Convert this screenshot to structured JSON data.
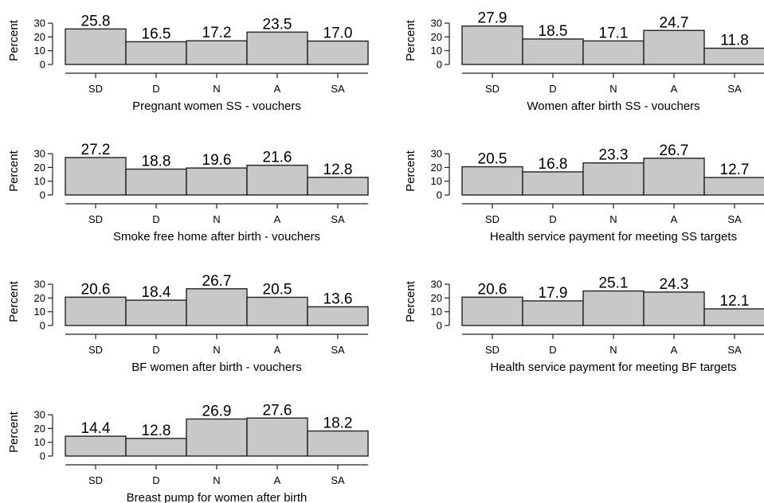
{
  "chart_data": [
    {
      "type": "bar",
      "title": "Pregnant women SS - vouchers",
      "ylabel": "Percent",
      "categories": [
        "SD",
        "D",
        "N",
        "A",
        "SA"
      ],
      "values": [
        25.8,
        16.5,
        17.2,
        23.5,
        17.0
      ],
      "value_labels": [
        "25.8",
        "16.5",
        "17.2",
        "23.5",
        "17.0"
      ],
      "yticks": [
        "0",
        "10",
        "20",
        "30"
      ],
      "ylim": [
        0,
        30
      ]
    },
    {
      "type": "bar",
      "title": "Women after birth SS - vouchers",
      "ylabel": "Percent",
      "categories": [
        "SD",
        "D",
        "N",
        "A",
        "SA"
      ],
      "values": [
        27.9,
        18.5,
        17.1,
        24.7,
        11.8
      ],
      "value_labels": [
        "27.9",
        "18.5",
        "17.1",
        "24.7",
        "11.8"
      ],
      "yticks": [
        "0",
        "10",
        "20",
        "30"
      ],
      "ylim": [
        0,
        30
      ]
    },
    {
      "type": "bar",
      "title": "Smoke free home after birth - vouchers",
      "ylabel": "Percent",
      "categories": [
        "SD",
        "D",
        "N",
        "A",
        "SA"
      ],
      "values": [
        27.2,
        18.8,
        19.6,
        21.6,
        12.8
      ],
      "value_labels": [
        "27.2",
        "18.8",
        "19.6",
        "21.6",
        "12.8"
      ],
      "yticks": [
        "0",
        "10",
        "20",
        "30"
      ],
      "ylim": [
        0,
        30
      ]
    },
    {
      "type": "bar",
      "title": "Health service payment for meeting SS targets",
      "ylabel": "Percent",
      "categories": [
        "SD",
        "D",
        "N",
        "A",
        "SA"
      ],
      "values": [
        20.5,
        16.8,
        23.3,
        26.7,
        12.7
      ],
      "value_labels": [
        "20.5",
        "16.8",
        "23.3",
        "26.7",
        "12.7"
      ],
      "yticks": [
        "0",
        "10",
        "20",
        "30"
      ],
      "ylim": [
        0,
        30
      ]
    },
    {
      "type": "bar",
      "title": "BF women after birth - vouchers",
      "ylabel": "Percent",
      "categories": [
        "SD",
        "D",
        "N",
        "A",
        "SA"
      ],
      "values": [
        20.6,
        18.4,
        26.7,
        20.5,
        13.6
      ],
      "value_labels": [
        "20.6",
        "18.4",
        "26.7",
        "20.5",
        "13.6"
      ],
      "yticks": [
        "0",
        "10",
        "20",
        "30"
      ],
      "ylim": [
        0,
        30
      ]
    },
    {
      "type": "bar",
      "title": "Health service payment for meeting BF targets",
      "ylabel": "Percent",
      "categories": [
        "SD",
        "D",
        "N",
        "A",
        "SA"
      ],
      "values": [
        20.6,
        17.9,
        25.1,
        24.3,
        12.1
      ],
      "value_labels": [
        "20.6",
        "17.9",
        "25.1",
        "24.3",
        "12.1"
      ],
      "yticks": [
        "0",
        "10",
        "20",
        "30"
      ],
      "ylim": [
        0,
        30
      ]
    },
    {
      "type": "bar",
      "title": "Breast pump for women after birth",
      "ylabel": "Percent",
      "categories": [
        "SD",
        "D",
        "N",
        "A",
        "SA"
      ],
      "values": [
        14.4,
        12.8,
        26.9,
        27.6,
        18.2
      ],
      "value_labels": [
        "14.4",
        "12.8",
        "26.9",
        "27.6",
        "18.2"
      ],
      "yticks": [
        "0",
        "10",
        "20",
        "30"
      ],
      "ylim": [
        0,
        30
      ]
    }
  ]
}
